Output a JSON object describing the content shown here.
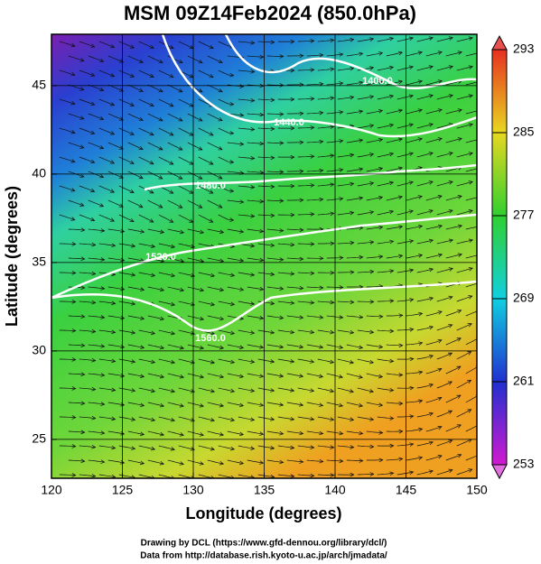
{
  "chart_data": {
    "type": "map",
    "title": "MSM 09Z14Feb2024 (850.0hPa)",
    "x_label": "Longitude (degrees)",
    "y_label": "Latitude  (degrees)",
    "xlim": [
      120,
      150
    ],
    "xticks": [
      120,
      125,
      130,
      135,
      140,
      145,
      150
    ],
    "ylim": [
      22.8,
      47.9
    ],
    "yticks": [
      25,
      30,
      35,
      40,
      45
    ],
    "grid": true,
    "colorbar": {
      "lim": [
        253,
        293
      ],
      "ticks": [
        253,
        261,
        269,
        277,
        285,
        293
      ]
    },
    "contour_labels": [
      "1400.0",
      "1440.0",
      "1480.0",
      "1520.0",
      "1560.0"
    ],
    "footer": [
      "Drawing by DCL (https://www.gfd-dennou.org/library/dcl/)",
      "Data from http://database.rish.kyoto-u.ac.jp/arch/jmadata/"
    ]
  }
}
